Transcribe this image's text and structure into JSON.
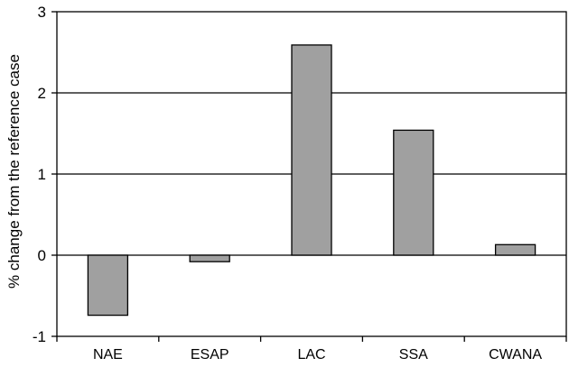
{
  "chart_data": {
    "type": "bar",
    "title": "",
    "xlabel": "",
    "ylabel": "% change from the reference case",
    "categories": [
      "NAE",
      "ESAP",
      "LAC",
      "SSA",
      "CWANA"
    ],
    "values": [
      -0.74,
      -0.08,
      2.59,
      1.54,
      0.13
    ],
    "ylim": [
      -1,
      3
    ],
    "yticks": [
      -1,
      0,
      1,
      2,
      3
    ],
    "ytick_labels": [
      "-1",
      "0",
      "1",
      "2",
      "3"
    ],
    "grid": true,
    "legend": "none",
    "colors": {
      "bar_fill": "#a0a0a0",
      "bar_stroke": "#000000",
      "gridline": "#000000",
      "frame": "#000000"
    }
  }
}
